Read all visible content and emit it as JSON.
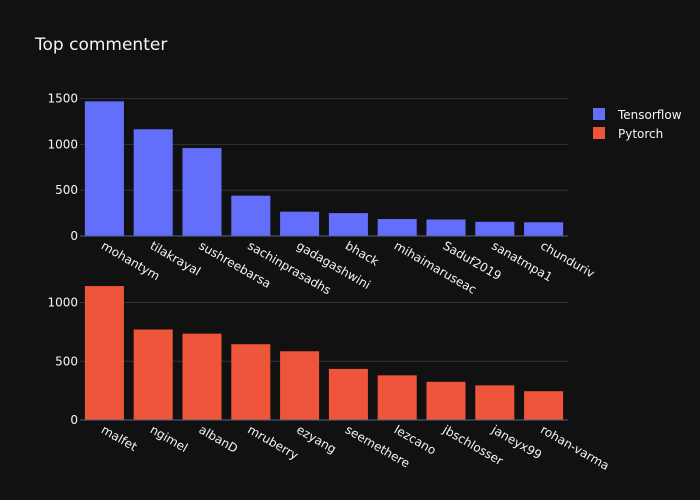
{
  "title": "Top commenter",
  "colors": {
    "background": "#111111",
    "tensorflow": "#636efa",
    "pytorch": "#ef553b",
    "grid": "#283442",
    "text": "#f2f5fa"
  },
  "legend": {
    "placement": "top-right",
    "items": [
      {
        "label": "Tensorflow",
        "color": "#636efa"
      },
      {
        "label": "Pytorch",
        "color": "#ef553b"
      }
    ]
  },
  "chart_data": [
    {
      "type": "bar",
      "series_name": "Tensorflow",
      "categories": [
        "mohantym",
        "tilakrayal",
        "sushreebarsa",
        "sachinprasadhs",
        "gadagashwini",
        "bhack",
        "mihaimaruseac",
        "Saduf2019",
        "sanatmpa1",
        "chunduriv"
      ],
      "values": [
        1470,
        1165,
        960,
        440,
        265,
        250,
        185,
        180,
        155,
        150
      ],
      "ylim": [
        0,
        1550
      ],
      "yticks": [
        "0",
        "500",
        "1000",
        "1500"
      ],
      "grid": true
    },
    {
      "type": "bar",
      "series_name": "Pytorch",
      "categories": [
        "malfet",
        "ngimel",
        "albanD",
        "mruberry",
        "ezyang",
        "seemethere",
        "lezcano",
        "jbschlosser",
        "janeyx99",
        "rohan-varma"
      ],
      "values": [
        1140,
        770,
        735,
        645,
        585,
        435,
        380,
        325,
        295,
        245
      ],
      "ylim": [
        0,
        1200
      ],
      "yticks": [
        "0",
        "500",
        "1000"
      ],
      "grid": true
    }
  ]
}
